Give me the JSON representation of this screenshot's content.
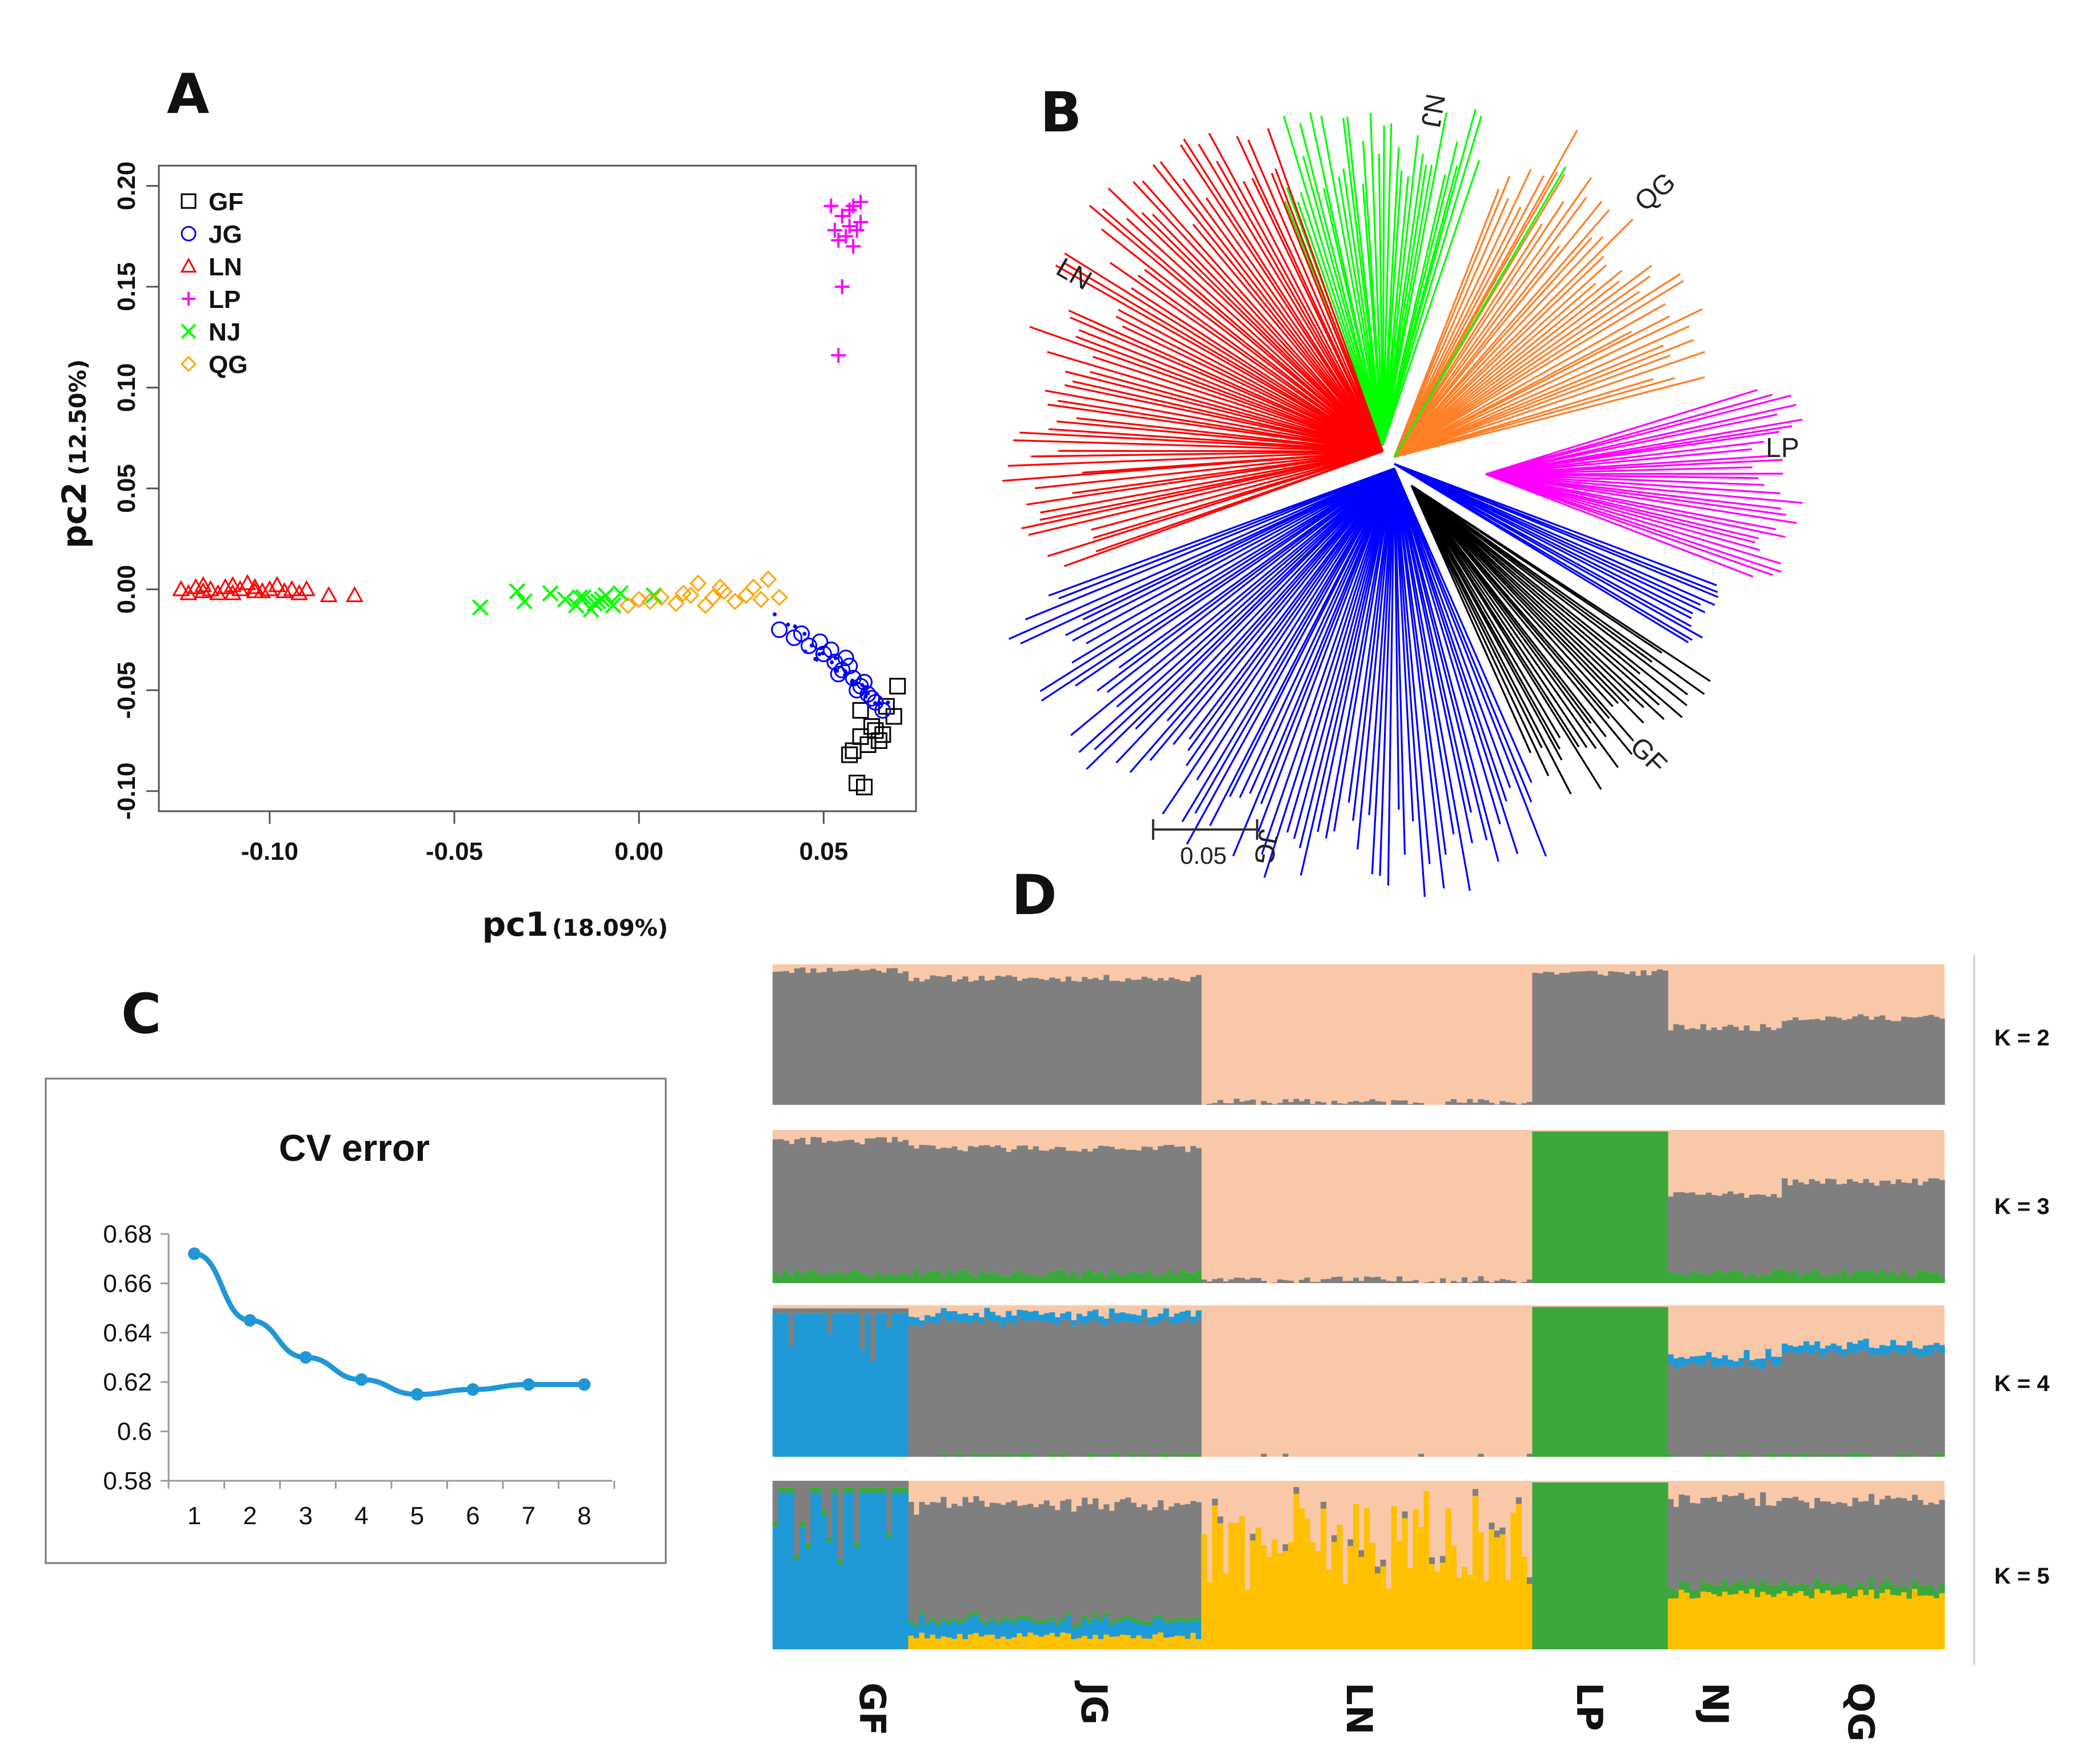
{
  "panels": {
    "a": "A",
    "b": "B",
    "c": "C",
    "d": "D"
  },
  "colors": {
    "GF": "#000000",
    "JG": "#0000ff",
    "LN": "#ff0000",
    "LP": "#ff00ff",
    "NJ": "#00ff00",
    "QG": "#ffa500",
    "treeGF": "#000000",
    "treeJG": "#0000ff",
    "treeLN": "#ff0000",
    "treeLP": "#ff00ff",
    "treeNJ": "#00ff00",
    "treeQG": "#ff7f27",
    "admixPeach": "#f8c8a8",
    "admixGray": "#7f7f7f",
    "admixGreen": "#3ca83c",
    "admixBlue": "#1f9ad6",
    "admixYellow": "#ffc000",
    "cvLine": "#2196d6"
  },
  "chart_data": [
    {
      "id": "A",
      "type": "scatter",
      "xlabel": "pc1",
      "xlabel_pct": "(18.09%)",
      "ylabel": "pc2",
      "ylabel_pct": "(12.50%)",
      "xlim": [
        -0.13,
        0.075
      ],
      "ylim": [
        -0.11,
        0.21
      ],
      "xticks": [
        "-0.10",
        "-0.05",
        "0.00",
        "0.05"
      ],
      "xtick_values": [
        -0.1,
        -0.05,
        0.0,
        0.05
      ],
      "yticks": [
        "-0.10",
        "-0.05",
        "0.00",
        "0.05",
        "0.10",
        "0.15",
        "0.20"
      ],
      "ytick_values": [
        -0.1,
        -0.05,
        0.0,
        0.05,
        0.1,
        0.15,
        0.2
      ],
      "legend_position": "top-left",
      "series": [
        {
          "name": "GF",
          "marker": "square",
          "points": [
            [
              0.06,
              -0.06
            ],
            [
              0.063,
              -0.068
            ],
            [
              0.066,
              -0.072
            ],
            [
              0.058,
              -0.08
            ],
            [
              0.069,
              -0.063
            ],
            [
              0.062,
              -0.077
            ],
            [
              0.07,
              -0.048
            ],
            [
              0.061,
              -0.098
            ],
            [
              0.059,
              -0.096
            ],
            [
              0.065,
              -0.075
            ],
            [
              0.067,
              -0.058
            ],
            [
              0.057,
              -0.082
            ],
            [
              0.064,
              -0.07
            ],
            [
              0.06,
              -0.073
            ]
          ]
        },
        {
          "name": "JG",
          "marker": "circle",
          "points": [
            [
              0.038,
              -0.02
            ],
            [
              0.042,
              -0.024
            ],
            [
              0.046,
              -0.028
            ],
            [
              0.05,
              -0.032
            ],
            [
              0.053,
              -0.036
            ],
            [
              0.055,
              -0.04
            ],
            [
              0.058,
              -0.044
            ],
            [
              0.06,
              -0.048
            ],
            [
              0.062,
              -0.052
            ],
            [
              0.064,
              -0.056
            ],
            [
              0.052,
              -0.03
            ],
            [
              0.057,
              -0.038
            ],
            [
              0.061,
              -0.046
            ],
            [
              0.063,
              -0.054
            ],
            [
              0.059,
              -0.05
            ],
            [
              0.049,
              -0.026
            ],
            [
              0.054,
              -0.042
            ],
            [
              0.066,
              -0.06
            ],
            [
              0.044,
              -0.022
            ],
            [
              0.056,
              -0.034
            ]
          ]
        },
        {
          "name": "LN",
          "marker": "triangle",
          "points": [
            [
              -0.124,
              0.0
            ],
            [
              -0.122,
              -0.002
            ],
            [
              -0.12,
              0.001
            ],
            [
              -0.118,
              -0.001
            ],
            [
              -0.116,
              0.0
            ],
            [
              -0.114,
              -0.002
            ],
            [
              -0.112,
              0.001
            ],
            [
              -0.11,
              0.002
            ],
            [
              -0.108,
              0.0
            ],
            [
              -0.106,
              0.003
            ],
            [
              -0.104,
              0.001
            ],
            [
              -0.102,
              -0.001
            ],
            [
              -0.1,
              0.0
            ],
            [
              -0.098,
              0.002
            ],
            [
              -0.096,
              -0.001
            ],
            [
              -0.094,
              0.0
            ],
            [
              -0.092,
              -0.002
            ],
            [
              -0.09,
              0.0
            ],
            [
              -0.118,
              0.002
            ],
            [
              -0.11,
              -0.002
            ],
            [
              -0.104,
              -0.001
            ],
            [
              -0.084,
              -0.003
            ],
            [
              -0.077,
              -0.003
            ]
          ]
        },
        {
          "name": "LP",
          "marker": "plus",
          "points": [
            [
              0.052,
              0.19
            ],
            [
              0.055,
              0.185
            ],
            [
              0.057,
              0.18
            ],
            [
              0.058,
              0.19
            ],
            [
              0.056,
              0.175
            ],
            [
              0.059,
              0.178
            ],
            [
              0.06,
              0.182
            ],
            [
              0.054,
              0.173
            ],
            [
              0.057,
              0.188
            ],
            [
              0.058,
              0.17
            ],
            [
              0.055,
              0.15
            ],
            [
              0.054,
              0.116
            ],
            [
              0.06,
              0.192
            ],
            [
              0.053,
              0.178
            ]
          ]
        },
        {
          "name": "NJ",
          "marker": "cross",
          "points": [
            [
              -0.043,
              -0.009
            ],
            [
              -0.033,
              -0.001
            ],
            [
              -0.031,
              -0.006
            ],
            [
              -0.024,
              -0.002
            ],
            [
              -0.02,
              -0.005
            ],
            [
              -0.017,
              -0.008
            ],
            [
              -0.015,
              -0.004
            ],
            [
              -0.013,
              -0.01
            ],
            [
              -0.011,
              -0.006
            ],
            [
              -0.009,
              -0.003
            ],
            [
              -0.007,
              -0.008
            ],
            [
              -0.005,
              -0.002
            ],
            [
              -0.016,
              -0.004
            ],
            [
              -0.012,
              -0.007
            ],
            [
              0.004,
              -0.003
            ],
            [
              -0.01,
              -0.005
            ]
          ]
        },
        {
          "name": "QG",
          "marker": "diamond",
          "points": [
            [
              -0.003,
              -0.008
            ],
            [
              0.0,
              -0.005
            ],
            [
              0.003,
              -0.006
            ],
            [
              0.006,
              -0.004
            ],
            [
              0.01,
              -0.007
            ],
            [
              0.014,
              -0.003
            ],
            [
              0.016,
              0.003
            ],
            [
              0.018,
              -0.008
            ],
            [
              0.02,
              -0.004
            ],
            [
              0.023,
              -0.001
            ],
            [
              0.026,
              -0.006
            ],
            [
              0.029,
              -0.003
            ],
            [
              0.031,
              0.001
            ],
            [
              0.033,
              -0.005
            ],
            [
              0.035,
              0.005
            ],
            [
              0.038,
              -0.004
            ],
            [
              0.012,
              -0.002
            ],
            [
              0.022,
              0.001
            ]
          ]
        }
      ]
    },
    {
      "id": "B",
      "type": "tree",
      "scale_label": "0.05",
      "clade_labels": [
        "NJ",
        "QG",
        "LP",
        "GF",
        "JG",
        "LN"
      ]
    },
    {
      "id": "C",
      "type": "line",
      "title": "CV error",
      "x": [
        1,
        2,
        3,
        4,
        5,
        6,
        7,
        8
      ],
      "values": [
        0.672,
        0.645,
        0.63,
        0.621,
        0.615,
        0.617,
        0.619,
        0.619
      ],
      "ylim": [
        0.58,
        0.68
      ],
      "yticks": [
        "0.68",
        "0.66",
        "0.64",
        "0.62",
        "0.6",
        "0.58"
      ],
      "ytick_values": [
        0.68,
        0.66,
        0.64,
        0.62,
        0.6,
        0.58
      ],
      "xticks": [
        "1",
        "2",
        "3",
        "4",
        "5",
        "6",
        "7",
        "8"
      ]
    },
    {
      "id": "D",
      "type": "bar",
      "stacked": true,
      "populations": [
        "GF",
        "JG",
        "LN",
        "LP",
        "NJ",
        "QG"
      ],
      "population_counts": [
        25,
        54,
        61,
        25,
        21,
        30
      ],
      "rows": [
        "K = 2",
        "K = 3",
        "K = 4",
        "K = 5"
      ]
    }
  ]
}
